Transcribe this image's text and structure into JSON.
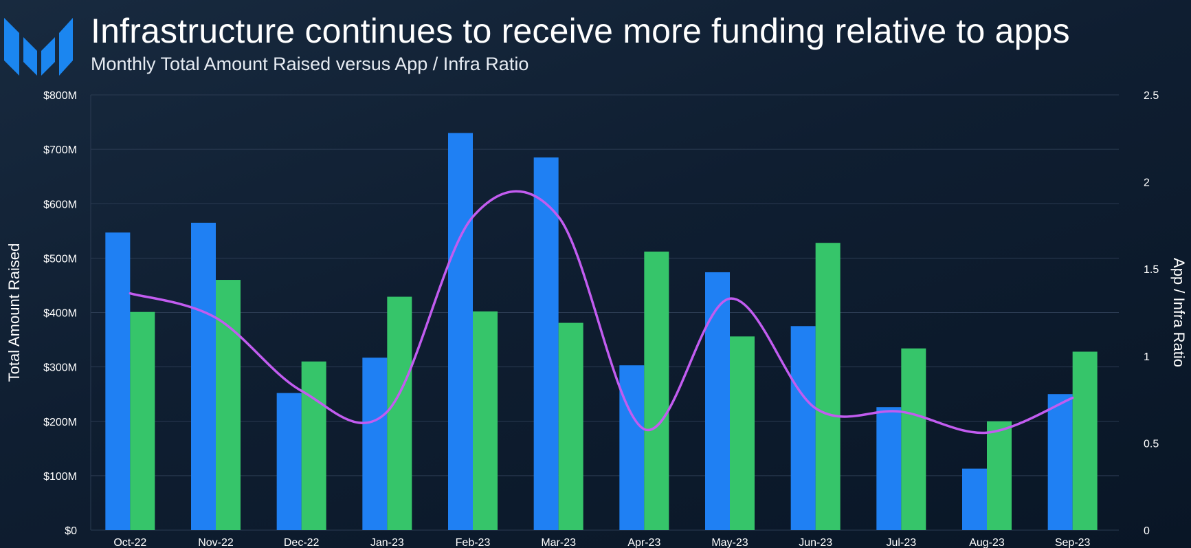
{
  "header": {
    "title": "Infrastructure continues to receive more funding relative to apps",
    "subtitle": "Monthly Total Amount Raised versus App / Infra Ratio"
  },
  "colors": {
    "series_a": "#1f80f3",
    "series_b": "#36c56a",
    "ratio_line": "#c25cf0",
    "grid": "#2b3b52",
    "logo": "#1b86f0"
  },
  "chart_data": {
    "type": "bar",
    "categories": [
      "Oct-22",
      "Nov-22",
      "Dec-22",
      "Jan-23",
      "Feb-23",
      "Mar-23",
      "Apr-23",
      "May-23",
      "Jun-23",
      "Jul-23",
      "Aug-23",
      "Sep-23"
    ],
    "series": [
      {
        "values": [
          547,
          565,
          252,
          317,
          730,
          685,
          303,
          474,
          375,
          226,
          113,
          250
        ]
      },
      {
        "values": [
          401,
          460,
          310,
          429,
          402,
          381,
          512,
          356,
          528,
          334,
          200,
          328
        ]
      },
      {
        "axis": "right",
        "type": "line",
        "values": [
          1.36,
          1.22,
          0.8,
          0.68,
          1.8,
          1.8,
          0.58,
          1.33,
          0.7,
          0.68,
          0.56,
          0.76
        ]
      }
    ],
    "ylabel": "Total Amount Raised",
    "ylabel_right": "App / Infra Ratio",
    "ylim": [
      0,
      800
    ],
    "ylim_right": [
      0,
      2.5
    ],
    "yticks": [
      "$0",
      "$100M",
      "$200M",
      "$300M",
      "$400M",
      "$500M",
      "$600M",
      "$700M",
      "$800M"
    ],
    "yticks_right": [
      "0",
      "0.5",
      "1",
      "1.5",
      "2",
      "2.5"
    ],
    "grid": true
  }
}
